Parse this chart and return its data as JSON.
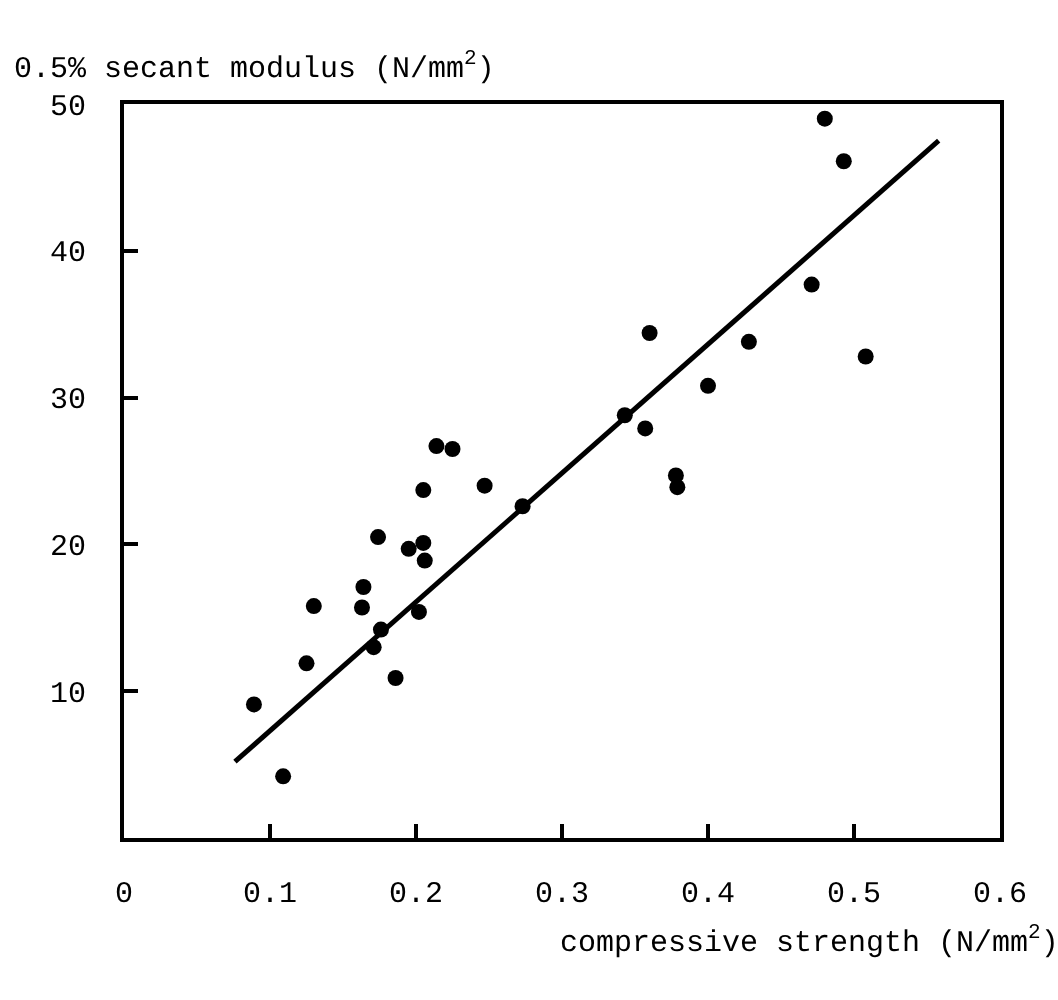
{
  "chart_data": {
    "type": "scatter",
    "xlabel": "compressive strength (N/mm$^{2}$)",
    "ylabel": "0.5% secant modulus (N/mm$^{2}$)",
    "xlim": [
      0,
      0.6
    ],
    "ylim": [
      0,
      50
    ],
    "xticks": [
      0,
      0.1,
      0.2,
      0.3,
      0.4,
      0.5,
      0.6
    ],
    "yticks": [
      10,
      20,
      30,
      40,
      50
    ],
    "series": [
      {
        "type": "scatter",
        "marker": "circle",
        "color": "#000000",
        "x": [
          0.089,
          0.109,
          0.125,
          0.13,
          0.164,
          0.163,
          0.174,
          0.171,
          0.176,
          0.186,
          0.195,
          0.205,
          0.206,
          0.202,
          0.205,
          0.214,
          0.225,
          0.247,
          0.273,
          0.343,
          0.36,
          0.357,
          0.378,
          0.379,
          0.4,
          0.428,
          0.471,
          0.48,
          0.493,
          0.508
        ],
        "values": [
          9.1,
          4.2,
          11.9,
          15.8,
          17.1,
          15.7,
          20.5,
          13.0,
          14.2,
          10.9,
          19.7,
          20.1,
          18.9,
          15.4,
          23.7,
          26.7,
          26.5,
          24.0,
          22.6,
          28.8,
          34.4,
          27.9,
          24.7,
          23.9,
          30.8,
          33.8,
          37.7,
          49.0,
          46.1,
          32.8
        ]
      },
      {
        "type": "line",
        "color": "#000000",
        "x": [
          0.076,
          0.558
        ],
        "values": [
          5.2,
          47.5
        ]
      }
    ]
  }
}
